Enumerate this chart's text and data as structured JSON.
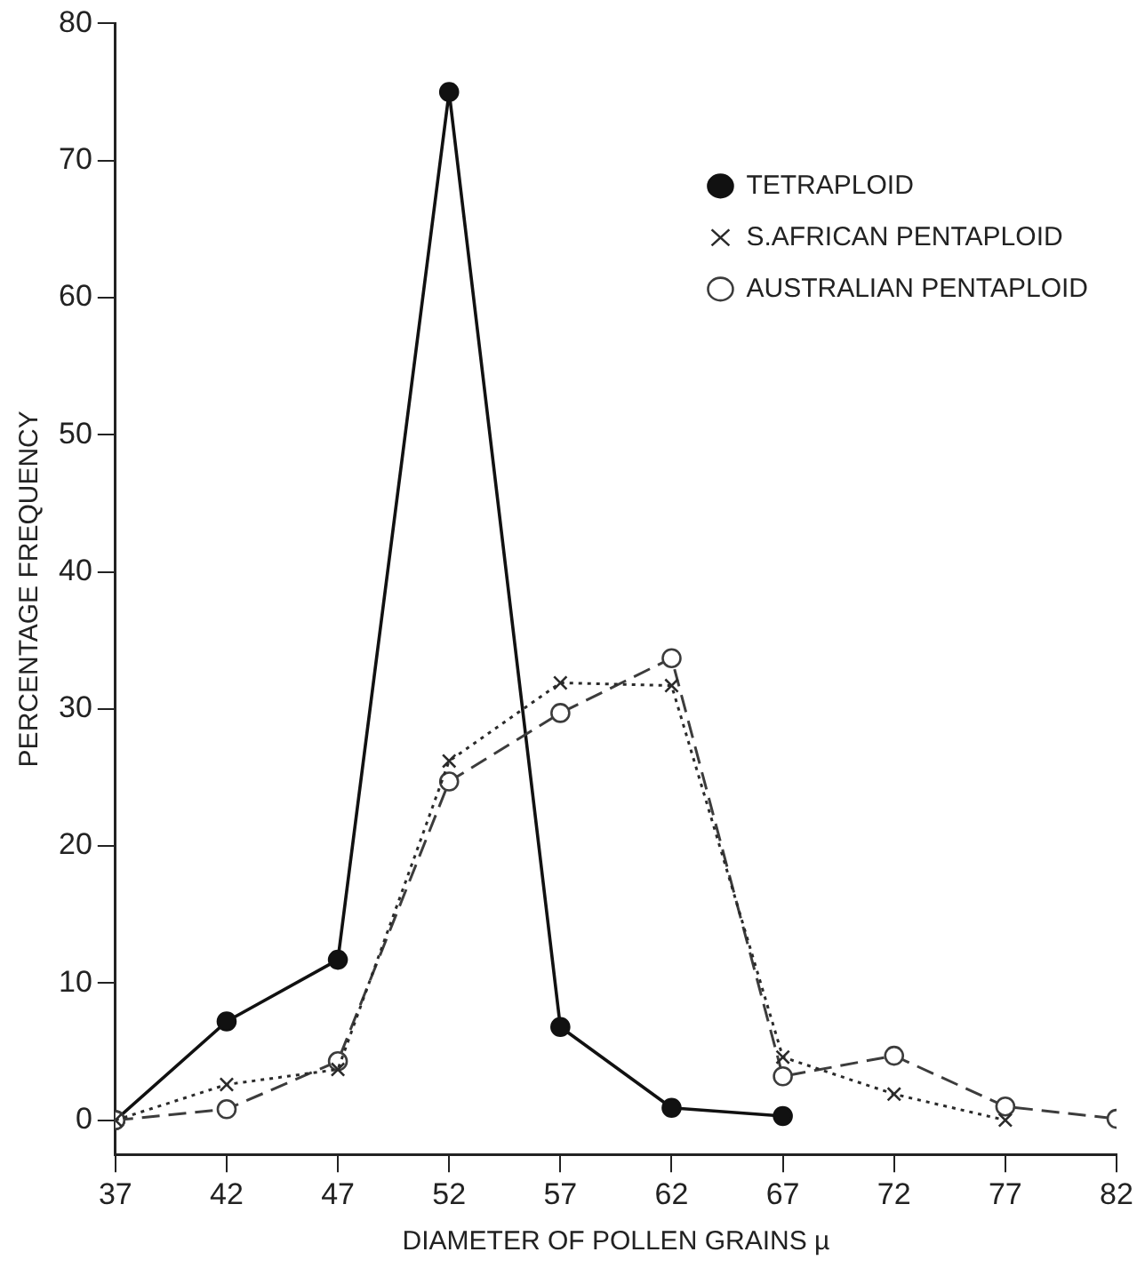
{
  "chart_data": {
    "type": "line",
    "xlabel": "DIAMETER OF POLLEN GRAINS µ",
    "ylabel": "PERCENTAGE FREQUENCY",
    "xlim": [
      37,
      82
    ],
    "xticks": [
      37,
      42,
      47,
      52,
      57,
      62,
      67,
      72,
      77,
      82
    ],
    "ylim": [
      -2.5,
      80
    ],
    "yticks": [
      0,
      10,
      20,
      30,
      40,
      50,
      60,
      70,
      80
    ],
    "grid": false,
    "legend": "top right",
    "series": [
      {
        "name": "TETRAPLOID",
        "color": "#111111",
        "marker": "circle",
        "line_style": "solid",
        "x": [
          37,
          42,
          47,
          52,
          57,
          62,
          67
        ],
        "values": [
          0,
          7.2,
          11.7,
          75,
          6.8,
          0.9,
          0.3
        ]
      },
      {
        "name": "S.AFRICAN PENTAPLOID",
        "color": "#2a2a2a",
        "marker": "cross",
        "line_style": "dotted",
        "x": [
          37,
          42,
          47,
          52,
          57,
          62,
          67,
          72,
          77
        ],
        "values": [
          0,
          2.6,
          3.7,
          26.2,
          31.9,
          31.7,
          4.6,
          1.9,
          0
        ]
      },
      {
        "name": "AUSTRALIAN PENTAPLOID",
        "color": "#3c3c3c",
        "marker": "circle",
        "line_style": "dashed",
        "x": [
          37,
          42,
          47,
          52,
          57,
          62,
          67,
          72,
          77,
          82
        ],
        "values": [
          0,
          0.8,
          4.3,
          24.7,
          29.7,
          33.7,
          3.2,
          4.7,
          1,
          0.1
        ]
      }
    ]
  }
}
